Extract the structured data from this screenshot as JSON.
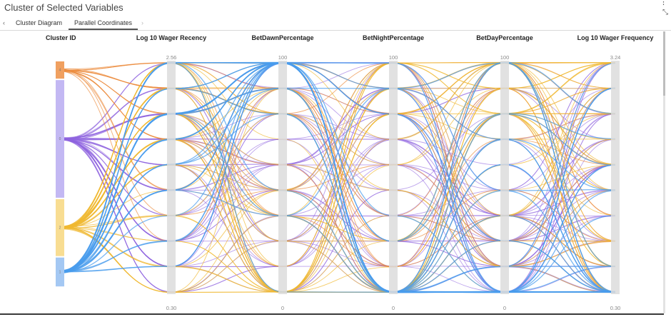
{
  "window": {
    "title": "Cluster of Selected Variables",
    "more_icon": "more-vertical-icon",
    "expand_icon": "expand-icon"
  },
  "tabs": {
    "prev": "‹",
    "items": [
      {
        "label": "Cluster Diagram"
      },
      {
        "label": "Parallel Coordinates",
        "active": true
      }
    ],
    "next": "›"
  },
  "chart_data": {
    "type": "parallel-coordinates",
    "axes": [
      {
        "name": "Cluster ID",
        "categories": [
          "4",
          "0",
          "2",
          "1"
        ]
      },
      {
        "name": "Log 10 Wager Recency",
        "min": "0.30",
        "max": "2.56"
      },
      {
        "name": "BetDawnPercentage",
        "min": "0",
        "max": "100"
      },
      {
        "name": "BetNightPercentage",
        "min": "0",
        "max": "100"
      },
      {
        "name": "BetDayPercentage",
        "min": "0",
        "max": "100"
      },
      {
        "name": "Log 10 Wager Frequency",
        "min": "0.30",
        "max": "3.24"
      }
    ],
    "bins_per_axis": 10,
    "clusters": [
      {
        "id": "4",
        "color": "#f0a060",
        "line_color": "#ec8a3c",
        "share": 0.08
      },
      {
        "id": "0",
        "color": "#c3b8f3",
        "line_color": "#8f64e0",
        "share": 0.51
      },
      {
        "id": "2",
        "color": "#f8dd92",
        "line_color": "#f0b830",
        "share": 0.25
      },
      {
        "id": "1",
        "color": "#a4c8f3",
        "line_color": "#4a9ced",
        "share": 0.13
      }
    ]
  }
}
